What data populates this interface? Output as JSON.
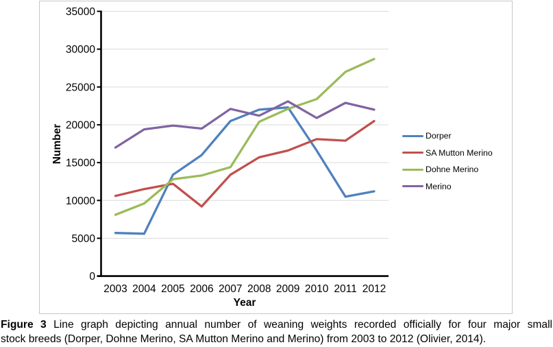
{
  "page": {
    "background": "#ffffff"
  },
  "figure": {
    "caption_label": "Figure 3",
    "caption_line1": " Line graph depicting annual number of weaning weights recorded officially for four major small",
    "caption_line2": "stock breeds (Dorper, Dohne Merino, SA Mutton Merino and Merino) from 2003 to 2012 (Olivier, 2014)."
  },
  "chart_data": {
    "type": "line",
    "title": "",
    "xlabel": "Year",
    "ylabel": "Number",
    "ylim": [
      0,
      35000
    ],
    "ytick_step": 5000,
    "grid": true,
    "legend_position": "right",
    "categories": [
      "2003",
      "2004",
      "2005",
      "2006",
      "2007",
      "2008",
      "2009",
      "2010",
      "2011",
      "2012"
    ],
    "series": [
      {
        "name": "Dorper",
        "color": "#4F81BD",
        "values": [
          5700,
          5600,
          13400,
          16000,
          20500,
          22000,
          22300,
          16600,
          10500,
          11200
        ]
      },
      {
        "name": "SA Mutton Merino",
        "color": "#C0504D",
        "values": [
          10600,
          11500,
          12200,
          9200,
          13400,
          15700,
          16600,
          18100,
          17900,
          20500
        ]
      },
      {
        "name": "Dohne Merino",
        "color": "#9BBB59",
        "values": [
          8100,
          9600,
          12800,
          13300,
          14400,
          20400,
          22100,
          23400,
          27000,
          28700
        ]
      },
      {
        "name": "Merino",
        "color": "#8064A2",
        "values": [
          17000,
          19400,
          19900,
          19500,
          22100,
          21200,
          23100,
          20900,
          22900,
          22000
        ]
      }
    ],
    "axis_color": "#000000",
    "gridline_color": "#dadada",
    "plot_border_color": "#c6c6c6"
  }
}
